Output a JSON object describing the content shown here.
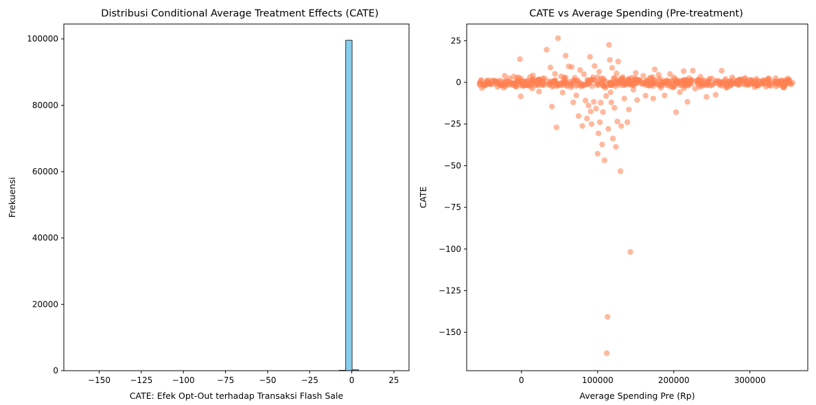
{
  "chart_data": [
    {
      "type": "bar",
      "title": "Distribusi Conditional Average Treatment Effects (CATE)",
      "xlabel": "CATE: Efek Opt-Out terhadap Transaksi Flash Sale",
      "ylabel": "Frekuensi",
      "xlim": [
        -171,
        34
      ],
      "ylim": [
        0,
        104500
      ],
      "xticks": [
        -150,
        -125,
        -100,
        -75,
        -50,
        -25,
        0,
        25
      ],
      "yticks": [
        0,
        20000,
        40000,
        60000,
        80000,
        100000
      ],
      "bin_width": 3.8,
      "bins": [
        {
          "x0": -3.6,
          "x1": 0.2,
          "count": 99600
        },
        {
          "x0": 0.2,
          "x1": 4.0,
          "count": 250
        },
        {
          "x0": -7.4,
          "x1": -3.6,
          "count": 120
        }
      ],
      "bar_color": "#87CEEB",
      "edge_color": "#000000",
      "grid": false
    },
    {
      "type": "scatter",
      "title": "CATE vs Average Spending (Pre-treatment)",
      "xlabel": "Average Spending Pre (Rp)",
      "ylabel": "CATE",
      "xlim": [
        -72000,
        376000
      ],
      "ylim": [
        -173,
        35
      ],
      "xticks": [
        0,
        100000,
        200000,
        300000
      ],
      "yticks": [
        25,
        0,
        -25,
        -50,
        -75,
        -100,
        -125,
        -150
      ],
      "point_color": "#FF7F50",
      "point_alpha": 0.55,
      "grid": false,
      "points": [
        [
          -55000,
          -0.6
        ],
        [
          -50000,
          -1.4
        ],
        [
          -45000,
          0.3
        ],
        [
          -42000,
          -1.0
        ],
        [
          -38000,
          0.9
        ],
        [
          -35000,
          -0.8
        ],
        [
          -30000,
          0.6
        ],
        [
          -27000,
          -1.3
        ],
        [
          -22000,
          4.0
        ],
        [
          -20000,
          -0.9
        ],
        [
          -16000,
          0.4
        ],
        [
          -12000,
          -1.6
        ],
        [
          -10000,
          3.5
        ],
        [
          -8000,
          -0.5
        ],
        [
          -5000,
          0.7
        ],
        [
          -3000,
          -1.2
        ],
        [
          -2000,
          13.9
        ],
        [
          -1000,
          -8.4
        ],
        [
          2000,
          0.2
        ],
        [
          5000,
          -1.7
        ],
        [
          8000,
          1.1
        ],
        [
          12000,
          -0.8
        ],
        [
          15000,
          4.2
        ],
        [
          18000,
          -1.5
        ],
        [
          20000,
          0.4
        ],
        [
          23000,
          -5.5
        ],
        [
          25000,
          0.9
        ],
        [
          28000,
          -1.2
        ],
        [
          30000,
          2.5
        ],
        [
          33000,
          19.6
        ],
        [
          35000,
          -0.9
        ],
        [
          38000,
          8.9
        ],
        [
          40000,
          -14.5
        ],
        [
          42000,
          0.6
        ],
        [
          44000,
          5.1
        ],
        [
          46000,
          -27.0
        ],
        [
          48000,
          26.5
        ],
        [
          50000,
          -1.1
        ],
        [
          52000,
          3.6
        ],
        [
          54000,
          -6.1
        ],
        [
          56000,
          0.8
        ],
        [
          58000,
          16.0
        ],
        [
          60000,
          -2.2
        ],
        [
          62000,
          9.6
        ],
        [
          64000,
          -0.6
        ],
        [
          66000,
          9.2
        ],
        [
          68000,
          -12.0
        ],
        [
          70000,
          2.7
        ],
        [
          72000,
          -7.8
        ],
        [
          74000,
          1.1
        ],
        [
          75000,
          -20.2
        ],
        [
          77000,
          7.4
        ],
        [
          79000,
          -1.4
        ],
        [
          80000,
          -26.2
        ],
        [
          82000,
          4.9
        ],
        [
          84000,
          -10.9
        ],
        [
          86000,
          -21.7
        ],
        [
          87000,
          0.7
        ],
        [
          88000,
          -13.9
        ],
        [
          90000,
          15.3
        ],
        [
          91000,
          -17.5
        ],
        [
          92000,
          -25.0
        ],
        [
          94000,
          3.1
        ],
        [
          95000,
          -11.7
        ],
        [
          96000,
          9.8
        ],
        [
          98000,
          -15.8
        ],
        [
          99000,
          -1.3
        ],
        [
          100000,
          -42.8
        ],
        [
          101000,
          -30.6
        ],
        [
          102000,
          6.4
        ],
        [
          103000,
          -23.9
        ],
        [
          104000,
          -12.2
        ],
        [
          105000,
          2.5
        ],
        [
          106000,
          -37.3
        ],
        [
          107000,
          -17.8
        ],
        [
          108000,
          1.1
        ],
        [
          109000,
          -46.8
        ],
        [
          110000,
          -3.3
        ],
        [
          111000,
          -8.2
        ],
        [
          112000,
          -162.5
        ],
        [
          113000,
          -140.7
        ],
        [
          114000,
          -27.9
        ],
        [
          115000,
          22.5
        ],
        [
          116000,
          13.5
        ],
        [
          117000,
          -6.0
        ],
        [
          118000,
          -12.0
        ],
        [
          119000,
          8.7
        ],
        [
          120000,
          -33.7
        ],
        [
          121000,
          2.4
        ],
        [
          122000,
          -15.3
        ],
        [
          123000,
          -2.3
        ],
        [
          124000,
          -38.7
        ],
        [
          125000,
          5.4
        ],
        [
          126000,
          -23.5
        ],
        [
          127000,
          12.5
        ],
        [
          128000,
          -1.6
        ],
        [
          130000,
          -53.3
        ],
        [
          131000,
          -26.2
        ],
        [
          133000,
          3.2
        ],
        [
          135000,
          -9.7
        ],
        [
          137000,
          0.9
        ],
        [
          139000,
          -23.9
        ],
        [
          141000,
          -16.3
        ],
        [
          143000,
          -101.8
        ],
        [
          145000,
          2.8
        ],
        [
          147000,
          -4.4
        ],
        [
          150000,
          5.6
        ],
        [
          152000,
          -10.6
        ],
        [
          155000,
          1.3
        ],
        [
          158000,
          -0.9
        ],
        [
          160000,
          3.9
        ],
        [
          163000,
          -8.0
        ],
        [
          166000,
          0.7
        ],
        [
          168000,
          -1.9
        ],
        [
          170000,
          2.6
        ],
        [
          173000,
          -9.7
        ],
        [
          175000,
          7.8
        ],
        [
          178000,
          -1.0
        ],
        [
          180000,
          4.6
        ],
        [
          183000,
          -3.2
        ],
        [
          186000,
          1.1
        ],
        [
          188000,
          -7.9
        ],
        [
          190000,
          0.4
        ],
        [
          193000,
          -1.7
        ],
        [
          195000,
          5.0
        ],
        [
          198000,
          -0.6
        ],
        [
          200000,
          3.0
        ],
        [
          203000,
          -17.9
        ],
        [
          205000,
          1.3
        ],
        [
          208000,
          -5.9
        ],
        [
          210000,
          0.8
        ],
        [
          213000,
          6.7
        ],
        [
          215000,
          -1.2
        ],
        [
          218000,
          -11.7
        ],
        [
          220000,
          2.5
        ],
        [
          223000,
          -1.0
        ],
        [
          225000,
          7.0
        ],
        [
          228000,
          -3.8
        ],
        [
          230000,
          0.6
        ],
        [
          233000,
          -1.5
        ],
        [
          235000,
          3.4
        ],
        [
          238000,
          -0.9
        ],
        [
          240000,
          1.2
        ],
        [
          243000,
          -8.7
        ],
        [
          245000,
          0.5
        ],
        [
          248000,
          -1.9
        ],
        [
          250000,
          2.3
        ],
        [
          253000,
          -0.7
        ],
        [
          255000,
          -7.5
        ],
        [
          258000,
          1.0
        ],
        [
          260000,
          -1.4
        ],
        [
          263000,
          7.0
        ],
        [
          265000,
          -0.4
        ],
        [
          268000,
          2.0
        ],
        [
          270000,
          -2.8
        ],
        [
          273000,
          0.7
        ],
        [
          275000,
          -1.1
        ],
        [
          278000,
          1.6
        ],
        [
          280000,
          -0.5
        ],
        [
          283000,
          0.9
        ],
        [
          285000,
          -1.3
        ],
        [
          288000,
          1.9
        ],
        [
          290000,
          -0.8
        ],
        [
          293000,
          0.5
        ],
        [
          295000,
          -1.0
        ],
        [
          298000,
          1.4
        ],
        [
          300000,
          -0.6
        ],
        [
          303000,
          0.4
        ],
        [
          305000,
          -0.9
        ],
        [
          308000,
          1.1
        ],
        [
          310000,
          -0.5
        ],
        [
          313000,
          0.7
        ],
        [
          315000,
          -0.8
        ],
        [
          318000,
          0.3
        ],
        [
          320000,
          -0.6
        ],
        [
          323000,
          0.9
        ],
        [
          325000,
          -0.4
        ],
        [
          328000,
          0.6
        ],
        [
          330000,
          -0.7
        ],
        [
          333000,
          0.2
        ],
        [
          336000,
          -0.5
        ],
        [
          339000,
          0.4
        ],
        [
          342000,
          -0.8
        ],
        [
          345000,
          0.3
        ],
        [
          348000,
          -0.4
        ],
        [
          352000,
          -0.6
        ],
        [
          356000,
          -0.2
        ]
      ],
      "dense_band": {
        "x_range": [
          -55000,
          355000
        ],
        "y_range": [
          -3,
          3
        ]
      }
    }
  ]
}
